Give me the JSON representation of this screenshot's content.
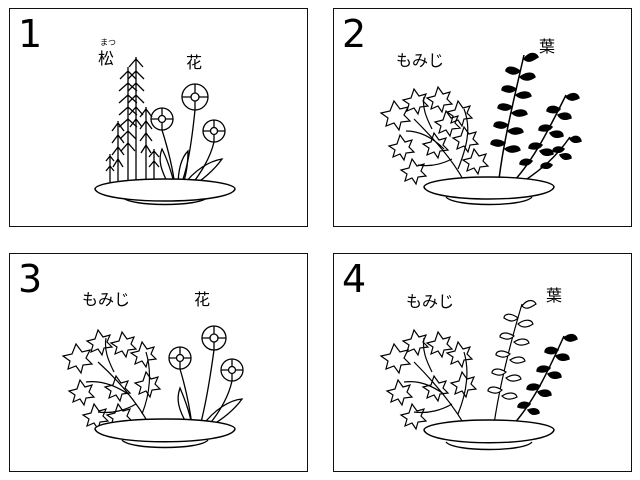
{
  "panels": [
    {
      "number": "1",
      "labels": {
        "pine": "松",
        "pine_reading": "まつ",
        "flower": "花"
      }
    },
    {
      "number": "2",
      "labels": {
        "maple": "もみじ",
        "leaf": "葉"
      }
    },
    {
      "number": "3",
      "labels": {
        "maple": "もみじ",
        "flower": "花"
      }
    },
    {
      "number": "4",
      "labels": {
        "maple": "もみじ",
        "leaf": "葉"
      }
    }
  ]
}
